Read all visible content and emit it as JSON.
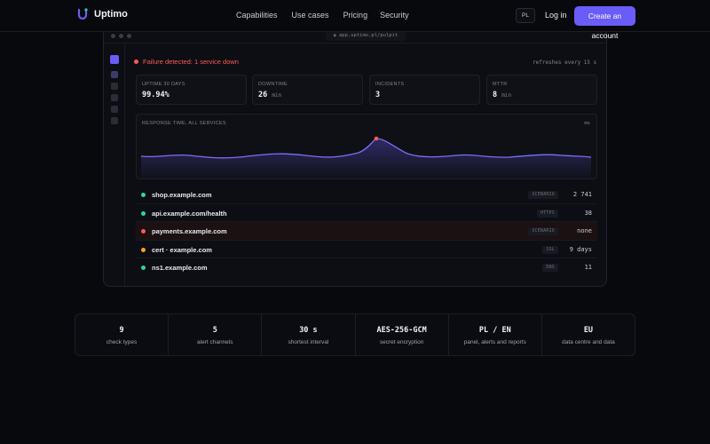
{
  "nav": {
    "brand": "Uptimo",
    "links": [
      "Capabilities",
      "Use cases",
      "Pricing",
      "Security"
    ],
    "lang": "PL",
    "login": "Log in",
    "cta": "Create an account",
    "accent": "#6a5cf6"
  },
  "window": {
    "url": "app.uptimo.pl/pulpit",
    "alert": "Failure detected: 1 service down",
    "refresh": "refreshes every 15 s",
    "stats": [
      {
        "label": "UPTIME 30 DAYS",
        "value": "99.94%",
        "unit": ""
      },
      {
        "label": "DOWNTIME",
        "value": "26",
        "unit": "min"
      },
      {
        "label": "INCIDENTS",
        "value": "3",
        "unit": ""
      },
      {
        "label": "MTTR",
        "value": "8",
        "unit": "min"
      }
    ],
    "chart": {
      "title": "RESPONSE TIME, ALL SERVICES",
      "unit": "ms"
    },
    "services": [
      {
        "name": "shop.example.com",
        "tag": "SCENARIO",
        "value": "2 741",
        "status": "ok"
      },
      {
        "name": "api.example.com/health",
        "tag": "HTTPS",
        "value": "38",
        "status": "ok"
      },
      {
        "name": "payments.example.com",
        "tag": "SCENARIO",
        "value": "none",
        "status": "down"
      },
      {
        "name": "cert · example.com",
        "tag": "SSL",
        "value": "9 days",
        "status": "warn"
      },
      {
        "name": "ns1.example.com",
        "tag": "DNS",
        "value": "11",
        "status": "ok"
      }
    ],
    "status_colors": {
      "ok": "#2dd4a2",
      "down": "#ff5a55",
      "warn": "#f5a524"
    }
  },
  "strip": [
    {
      "value": "9",
      "label": "check types"
    },
    {
      "value": "5",
      "label": "alert channels"
    },
    {
      "value": "30 s",
      "label": "shortest interval"
    },
    {
      "value": "AES-256-GCM",
      "label": "secret encryption"
    },
    {
      "value": "PL / EN",
      "label": "panel, alerts and reports"
    },
    {
      "value": "EU",
      "label": "data centre and data"
    }
  ]
}
